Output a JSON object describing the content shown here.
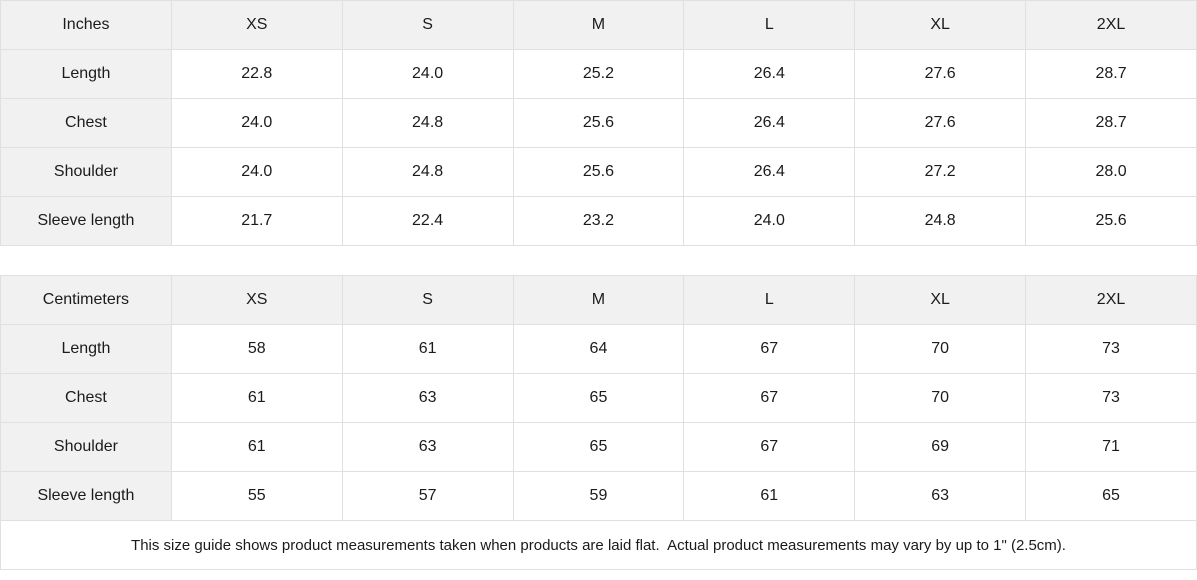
{
  "chart_data": [
    {
      "type": "table",
      "unit": "Inches",
      "columns": [
        "Inches",
        "XS",
        "S",
        "M",
        "L",
        "XL",
        "2XL"
      ],
      "rows": [
        {
          "label": "Length",
          "values": [
            "22.8",
            "24.0",
            "25.2",
            "26.4",
            "27.6",
            "28.7"
          ]
        },
        {
          "label": "Chest",
          "values": [
            "24.0",
            "24.8",
            "25.6",
            "26.4",
            "27.6",
            "28.7"
          ]
        },
        {
          "label": "Shoulder",
          "values": [
            "24.0",
            "24.8",
            "25.6",
            "26.4",
            "27.2",
            "28.0"
          ]
        },
        {
          "label": "Sleeve length",
          "values": [
            "21.7",
            "22.4",
            "23.2",
            "24.0",
            "24.8",
            "25.6"
          ]
        }
      ]
    },
    {
      "type": "table",
      "unit": "Centimeters",
      "columns": [
        "Centimeters",
        "XS",
        "S",
        "M",
        "L",
        "XL",
        "2XL"
      ],
      "rows": [
        {
          "label": "Length",
          "values": [
            "58",
            "61",
            "64",
            "67",
            "70",
            "73"
          ]
        },
        {
          "label": "Chest",
          "values": [
            "61",
            "63",
            "65",
            "67",
            "70",
            "73"
          ]
        },
        {
          "label": "Shoulder",
          "values": [
            "61",
            "63",
            "65",
            "67",
            "69",
            "71"
          ]
        },
        {
          "label": "Sleeve length",
          "values": [
            "55",
            "57",
            "59",
            "61",
            "63",
            "65"
          ]
        }
      ]
    }
  ],
  "footer": {
    "note": "This size guide shows product measurements taken when products are laid flat.  Actual product measurements may vary by up to 1\" (2.5cm)."
  },
  "colors": {
    "header_bg": "#f1f1f1",
    "cell_bg": "#ffffff",
    "border": "#e0e0e0",
    "text": "#1b1b1b"
  }
}
